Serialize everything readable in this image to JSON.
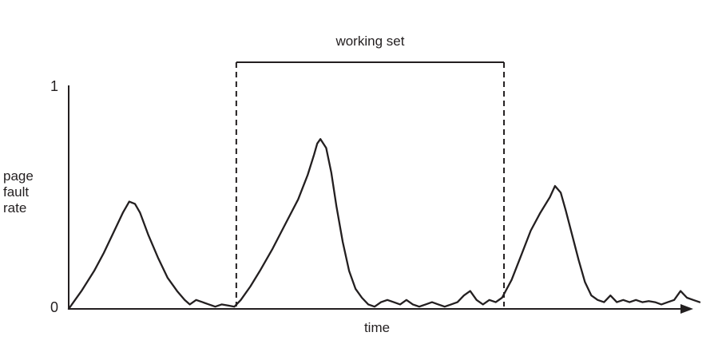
{
  "chart_data": {
    "type": "line",
    "title": "",
    "xlabel": "time",
    "ylabel_lines": [
      "page",
      "fault",
      "rate"
    ],
    "y_ticks": [
      {
        "value": 0,
        "label": "0"
      },
      {
        "value": 1,
        "label": "1"
      }
    ],
    "ylim": [
      0,
      1
    ],
    "xlim": [
      0,
      100
    ],
    "grid": false,
    "legend": "none",
    "annotation": {
      "label": "working set",
      "x_start": 26.3,
      "x_end": 68.3
    },
    "series": [
      {
        "color": "#231f20",
        "points": [
          [
            0,
            0
          ],
          [
            2,
            0.08
          ],
          [
            4,
            0.17
          ],
          [
            5.5,
            0.25
          ],
          [
            7,
            0.34
          ],
          [
            8.5,
            0.43
          ],
          [
            9.5,
            0.48
          ],
          [
            10.4,
            0.47
          ],
          [
            11.2,
            0.43
          ],
          [
            12.5,
            0.33
          ],
          [
            14,
            0.23
          ],
          [
            15.5,
            0.14
          ],
          [
            17,
            0.08
          ],
          [
            18.2,
            0.04
          ],
          [
            19,
            0.02
          ],
          [
            20,
            0.04
          ],
          [
            21,
            0.03
          ],
          [
            22,
            0.02
          ],
          [
            23,
            0.01
          ],
          [
            24,
            0.02
          ],
          [
            25,
            0.015
          ],
          [
            26,
            0.01
          ],
          [
            27,
            0.04
          ],
          [
            28.5,
            0.1
          ],
          [
            30,
            0.17
          ],
          [
            32,
            0.27
          ],
          [
            34,
            0.38
          ],
          [
            36,
            0.49
          ],
          [
            37.5,
            0.6
          ],
          [
            38.5,
            0.69
          ],
          [
            39,
            0.74
          ],
          [
            39.5,
            0.76
          ],
          [
            40.4,
            0.72
          ],
          [
            41.2,
            0.61
          ],
          [
            42,
            0.46
          ],
          [
            43,
            0.3
          ],
          [
            44,
            0.17
          ],
          [
            45,
            0.09
          ],
          [
            46,
            0.05
          ],
          [
            47,
            0.02
          ],
          [
            48,
            0.01
          ],
          [
            49,
            0.03
          ],
          [
            50,
            0.04
          ],
          [
            51,
            0.03
          ],
          [
            52,
            0.02
          ],
          [
            53,
            0.04
          ],
          [
            54,
            0.02
          ],
          [
            55,
            0.01
          ],
          [
            56,
            0.02
          ],
          [
            57,
            0.03
          ],
          [
            58,
            0.02
          ],
          [
            59,
            0.01
          ],
          [
            60,
            0.02
          ],
          [
            61,
            0.03
          ],
          [
            62,
            0.06
          ],
          [
            63,
            0.08
          ],
          [
            64,
            0.04
          ],
          [
            65,
            0.02
          ],
          [
            66,
            0.04
          ],
          [
            67,
            0.03
          ],
          [
            68,
            0.05
          ],
          [
            69.5,
            0.13
          ],
          [
            71,
            0.24
          ],
          [
            72.5,
            0.35
          ],
          [
            74,
            0.43
          ],
          [
            75.5,
            0.5
          ],
          [
            76.3,
            0.55
          ],
          [
            77.2,
            0.52
          ],
          [
            78,
            0.44
          ],
          [
            79,
            0.33
          ],
          [
            80,
            0.22
          ],
          [
            81,
            0.12
          ],
          [
            82,
            0.06
          ],
          [
            83,
            0.04
          ],
          [
            84,
            0.03
          ],
          [
            85,
            0.06
          ],
          [
            86,
            0.03
          ],
          [
            87,
            0.04
          ],
          [
            88,
            0.03
          ],
          [
            89,
            0.04
          ],
          [
            90,
            0.03
          ],
          [
            91,
            0.035
          ],
          [
            92,
            0.03
          ],
          [
            93,
            0.02
          ],
          [
            94,
            0.03
          ],
          [
            95,
            0.04
          ],
          [
            96,
            0.08
          ],
          [
            97,
            0.05
          ],
          [
            98,
            0.04
          ],
          [
            99,
            0.03
          ]
        ]
      }
    ]
  }
}
